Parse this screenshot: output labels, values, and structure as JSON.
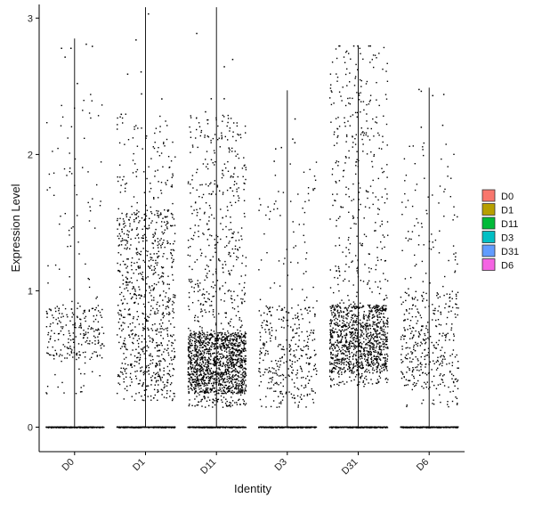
{
  "chart_data": {
    "type": "violin",
    "title": "",
    "xlabel": "Identity",
    "ylabel": "Expression Level",
    "categories": [
      "D0",
      "D1",
      "D11",
      "D3",
      "D31",
      "D6"
    ],
    "ylim": [
      -0.18,
      3.1
    ],
    "yticks": [
      0,
      1,
      2,
      3
    ],
    "legend": {
      "position": "right",
      "entries": [
        {
          "label": "D0",
          "color": "#F8766D"
        },
        {
          "label": "D1",
          "color": "#B79F00"
        },
        {
          "label": "D11",
          "color": "#00BA38"
        },
        {
          "label": "D3",
          "color": "#00BFC4"
        },
        {
          "label": "D31",
          "color": "#619CFF"
        },
        {
          "label": "D6",
          "color": "#F564E3"
        }
      ]
    },
    "series": [
      {
        "category": "D0",
        "max": 2.85,
        "nonzero_range": [
          0.25,
          2.45
        ],
        "nonzero_points": 300,
        "concentrated": [
          0.5,
          0.9
        ]
      },
      {
        "category": "D1",
        "max": 3.08,
        "nonzero_range": [
          0.2,
          2.3
        ],
        "nonzero_points": 900,
        "concentrated": [
          0.3,
          1.6
        ]
      },
      {
        "category": "D11",
        "max": 3.08,
        "nonzero_range": [
          0.15,
          2.3
        ],
        "nonzero_points": 1800,
        "concentrated": [
          0.25,
          0.7
        ]
      },
      {
        "category": "D3",
        "max": 2.47,
        "nonzero_range": [
          0.15,
          1.95
        ],
        "nonzero_points": 400,
        "concentrated": [
          0.2,
          0.9
        ]
      },
      {
        "category": "D31",
        "max": 2.8,
        "nonzero_range": [
          0.3,
          2.8
        ],
        "nonzero_points": 1400,
        "concentrated": [
          0.4,
          0.9
        ]
      },
      {
        "category": "D6",
        "max": 2.49,
        "nonzero_range": [
          0.15,
          2.1
        ],
        "nonzero_points": 450,
        "concentrated": [
          0.3,
          1.0
        ]
      }
    ]
  }
}
